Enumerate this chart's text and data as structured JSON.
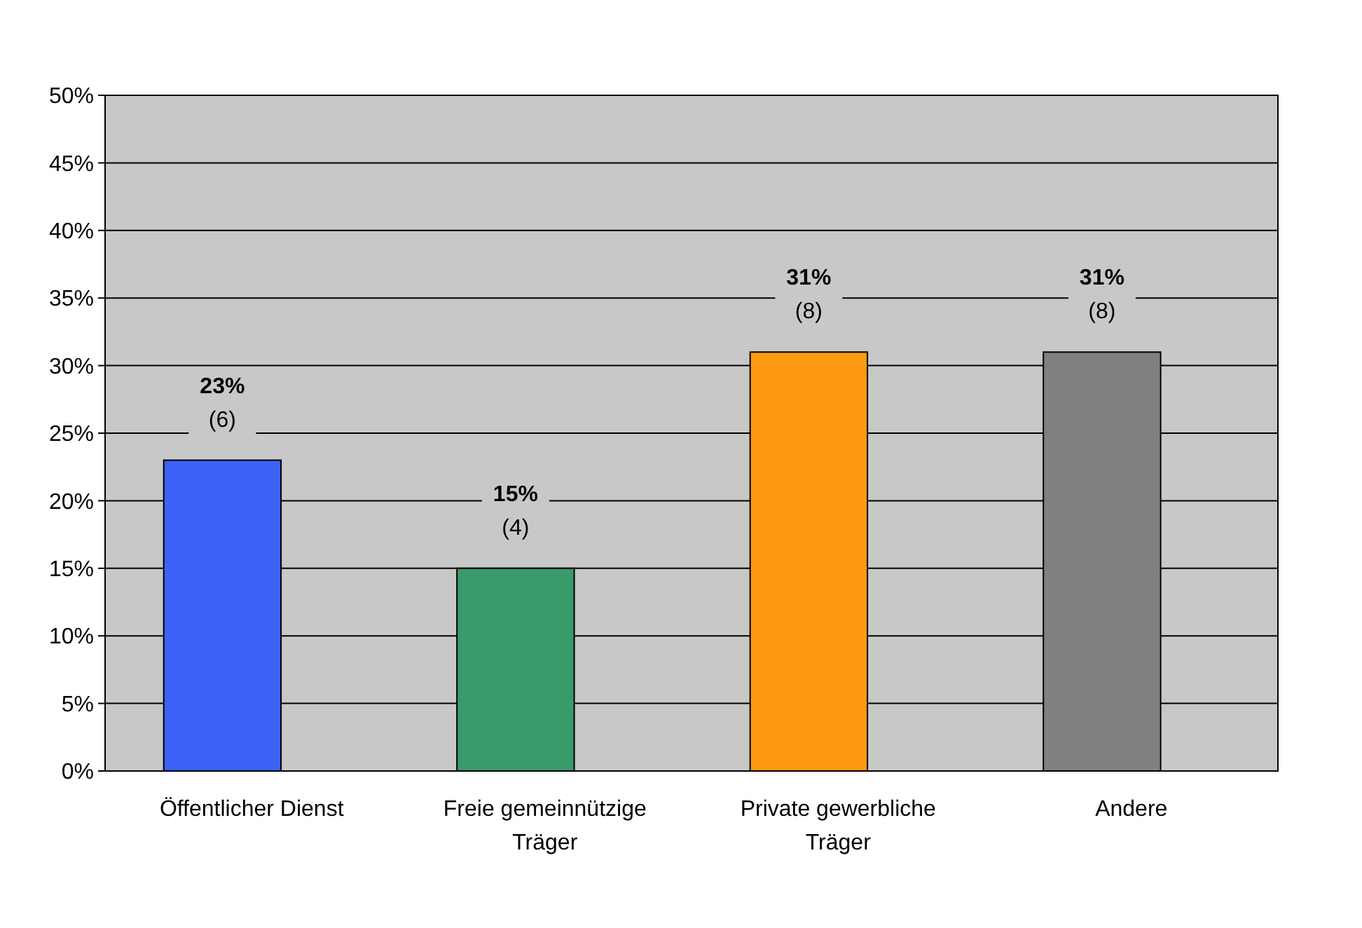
{
  "chart_data": {
    "type": "bar",
    "categories": [
      "Öffentlicher Dienst",
      "Freie gemeinnützige Träger",
      "Private gewerbliche Träger",
      "Andere"
    ],
    "values": [
      23,
      15,
      31,
      31
    ],
    "colors": [
      "#3b62f4",
      "#3a9a6c",
      "#ff9a12",
      "#808080"
    ],
    "value_labels": [
      "23% (6)",
      "15% (4)",
      "31% (8)",
      "31% (8)"
    ],
    "ylim": [
      0,
      50
    ],
    "yticks": [
      {
        "value": 0,
        "label": "0%"
      },
      {
        "value": 5,
        "label": "5%"
      },
      {
        "value": 10,
        "label": "10%"
      },
      {
        "value": 15,
        "label": "15%"
      },
      {
        "value": 20,
        "label": "20%"
      },
      {
        "value": 25,
        "label": "25%"
      },
      {
        "value": 30,
        "label": "30%"
      },
      {
        "value": 35,
        "label": "35%"
      },
      {
        "value": 40,
        "label": "40%"
      },
      {
        "value": 45,
        "label": "45%"
      },
      {
        "value": 50,
        "label": "50%"
      }
    ],
    "grid": "y"
  }
}
